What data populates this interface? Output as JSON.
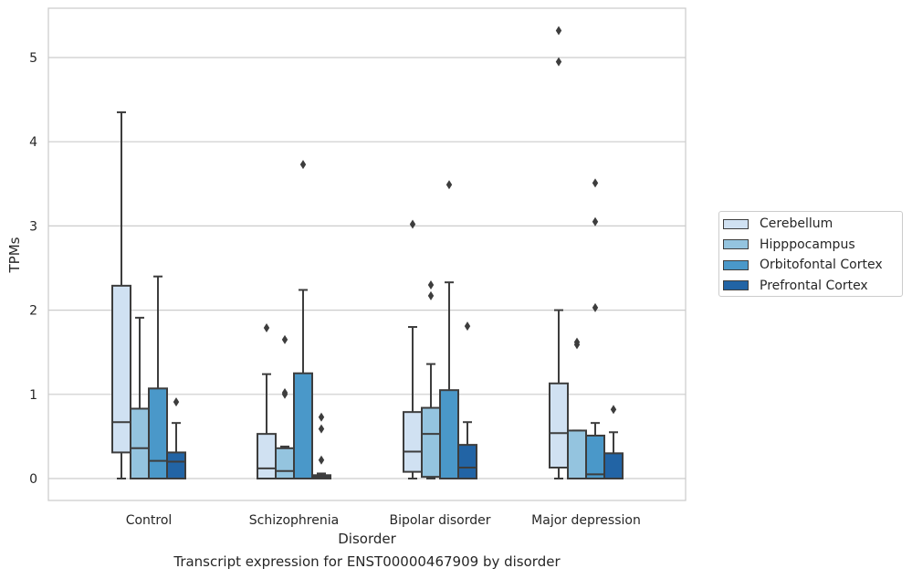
{
  "chart_data": {
    "type": "box",
    "title": "",
    "caption": "Transcript expression for ENST00000467909 by disorder",
    "xlabel": "Disorder",
    "ylabel": "TPMs",
    "ylim": [
      -0.25,
      5.6
    ],
    "yticks": [
      "0",
      "1",
      "2",
      "3",
      "4",
      "5"
    ],
    "grid": "horizontal",
    "legend_position": "right",
    "categories": [
      "Control",
      "Schizophrenia",
      "Bipolar disorder",
      "Major depression"
    ],
    "series": [
      {
        "name": "Cerebellum",
        "color": "#d0e1f2",
        "boxes": [
          {
            "whislo": 0.0,
            "q1": 0.31,
            "med": 0.67,
            "q3": 2.29,
            "whishi": 4.35,
            "fliers": []
          },
          {
            "whislo": 0.0,
            "q1": 0.0,
            "med": 0.12,
            "q3": 0.53,
            "whishi": 1.24,
            "fliers": [
              1.79
            ]
          },
          {
            "whislo": 0.0,
            "q1": 0.08,
            "med": 0.32,
            "q3": 0.79,
            "whishi": 1.8,
            "fliers": [
              3.02
            ]
          },
          {
            "whislo": 0.0,
            "q1": 0.13,
            "med": 0.54,
            "q3": 1.13,
            "whishi": 2.0,
            "fliers": [
              4.95,
              5.32
            ]
          }
        ]
      },
      {
        "name": "Hipppocampus",
        "color": "#94c4df",
        "boxes": [
          {
            "whislo": 0.0,
            "q1": 0.0,
            "med": 0.36,
            "q3": 0.83,
            "whishi": 1.91,
            "fliers": []
          },
          {
            "whislo": 0.0,
            "q1": 0.0,
            "med": 0.09,
            "q3": 0.36,
            "whishi": 0.38,
            "fliers": [
              1.0,
              1.02,
              1.65
            ]
          },
          {
            "whislo": 0.0,
            "q1": 0.02,
            "med": 0.53,
            "q3": 0.84,
            "whishi": 1.36,
            "fliers": [
              2.17,
              2.3
            ]
          },
          {
            "whislo": 0.0,
            "q1": 0.0,
            "med": 0.0,
            "q3": 0.57,
            "whishi": 0.57,
            "fliers": [
              1.59,
              1.62
            ]
          }
        ]
      },
      {
        "name": "Orbitofontal Cortex",
        "color": "#4a98c9",
        "boxes": [
          {
            "whislo": 0.0,
            "q1": 0.0,
            "med": 0.21,
            "q3": 1.07,
            "whishi": 2.4,
            "fliers": []
          },
          {
            "whislo": 0.0,
            "q1": 0.0,
            "med": 0.0,
            "q3": 1.25,
            "whishi": 2.24,
            "fliers": [
              3.73
            ]
          },
          {
            "whislo": 0.0,
            "q1": 0.0,
            "med": 0.0,
            "q3": 1.05,
            "whishi": 2.33,
            "fliers": [
              3.49
            ]
          },
          {
            "whislo": 0.0,
            "q1": 0.0,
            "med": 0.05,
            "q3": 0.51,
            "whishi": 0.66,
            "fliers": [
              2.03,
              3.05,
              3.51
            ]
          }
        ]
      },
      {
        "name": "Prefrontal Cortex",
        "color": "#2264a5",
        "boxes": [
          {
            "whislo": 0.0,
            "q1": 0.0,
            "med": 0.2,
            "q3": 0.31,
            "whishi": 0.66,
            "fliers": [
              0.91
            ]
          },
          {
            "whislo": 0.0,
            "q1": 0.0,
            "med": 0.02,
            "q3": 0.04,
            "whishi": 0.06,
            "fliers": [
              0.22,
              0.59,
              0.73
            ]
          },
          {
            "whislo": 0.0,
            "q1": 0.0,
            "med": 0.13,
            "q3": 0.4,
            "whishi": 0.67,
            "fliers": [
              1.81
            ]
          },
          {
            "whislo": 0.0,
            "q1": 0.0,
            "med": 0.0,
            "q3": 0.3,
            "whishi": 0.55,
            "fliers": [
              0.82
            ]
          }
        ]
      }
    ]
  }
}
